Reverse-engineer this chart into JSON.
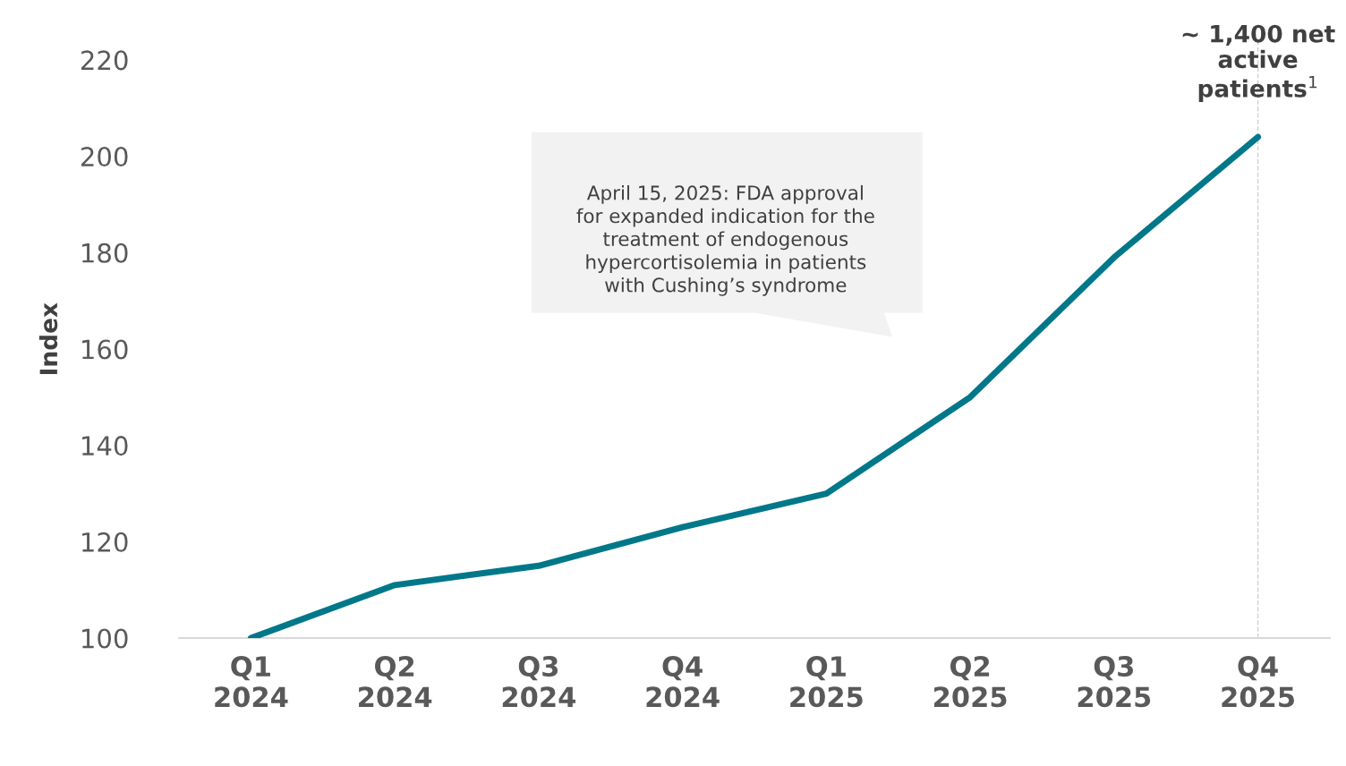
{
  "chart_data": {
    "type": "line",
    "ylabel": "Index",
    "categories": [
      "Q1\n2024",
      "Q2\n2024",
      "Q3\n2024",
      "Q4\n2024",
      "Q1\n2025",
      "Q2\n2025",
      "Q3\n2025",
      "Q4\n2025"
    ],
    "series": [
      {
        "color": "#00788a",
        "values": [
          100,
          111,
          115,
          123,
          130,
          150,
          179,
          204
        ]
      }
    ],
    "ylim": [
      100,
      224
    ],
    "yticks": [
      100,
      120,
      140,
      160,
      180,
      200,
      220
    ],
    "grid": false,
    "marker": "none",
    "line_style": "solid",
    "ref_lines": [
      {
        "axis": "x",
        "value": "Q4\n2025",
        "color": "#d0d0d0",
        "line_style": "dashed"
      }
    ],
    "annotations": [
      "April 15, 2025: FDA approval\nfor expanded indication for the\ntreatment of endogenous\nhypercortisolemia in patients\nwith Cushing’s syndrome",
      {
        "text": "~ 1,400 net\nactive\npatients$^{1}$",
        "x": "Q4\n2025",
        "y": 204
      }
    ]
  }
}
